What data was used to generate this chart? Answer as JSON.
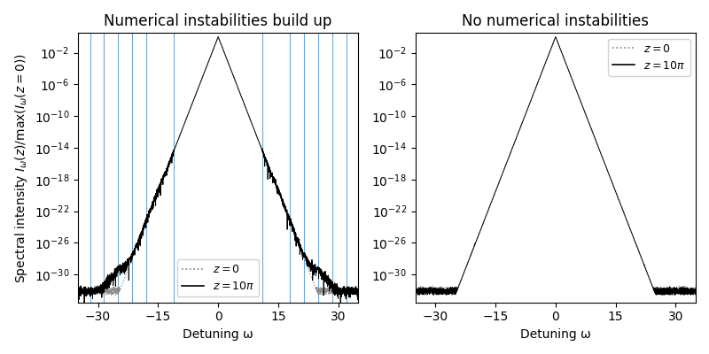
{
  "title_left": "Numerical instabilities build up",
  "title_right": "No numerical instabilities",
  "xlabel": "Detuning ω",
  "ylabel": "Spectral intensity $I_{\\omega}(z)/\\max(I_{\\omega}(z=0))$",
  "xlim": [
    -35,
    35
  ],
  "ylim": [
    3e-34,
    3
  ],
  "vlines_left": [
    -32,
    -28.5,
    -25,
    -21.5,
    -18,
    -11,
    11,
    18,
    21.5,
    25,
    28.5,
    32
  ],
  "vline_color": "#5599cc",
  "legend_z0_label": "$z = 0$",
  "legend_z10pi_label": "$z = 10\\pi$",
  "noise_floor": 5e-33,
  "slope": 3.0,
  "n_points": 3000,
  "xticks": [
    -30,
    -15,
    0,
    15,
    30
  ]
}
